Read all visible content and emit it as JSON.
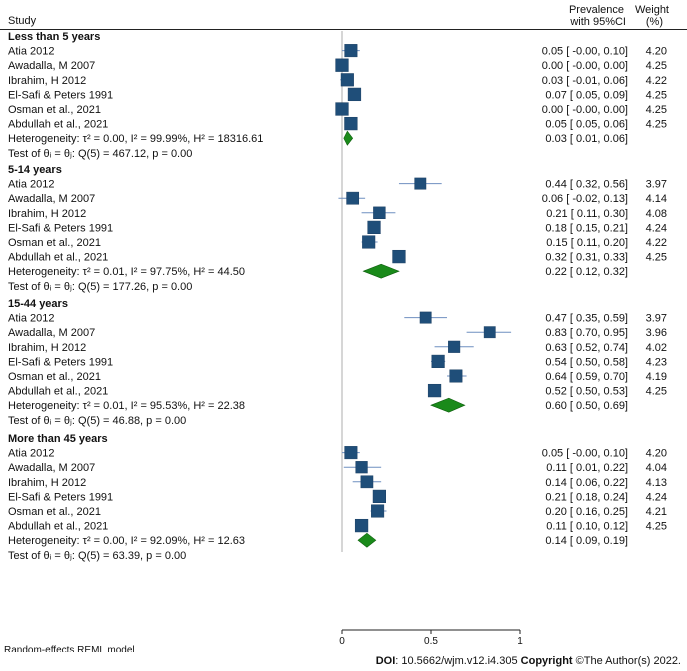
{
  "chart_data": {
    "type": "forest",
    "header": {
      "study": "Study",
      "prevalence_1": "Prevalence",
      "prevalence_2": "with 95%CI",
      "weight_1": "Weight",
      "weight_2": "(%)"
    },
    "x_range": [
      0,
      1
    ],
    "x_ticks": [
      0,
      0.5,
      1
    ],
    "x_tick_labels": [
      "0",
      "0.5",
      "1"
    ],
    "model_note": "Random-effects REML model",
    "groups": [
      {
        "title": "Less than 5 years",
        "studies": [
          {
            "name": "Atia 2012",
            "est": 0.05,
            "lo": -0.0,
            "hi": 0.1,
            "ci_text": "0.05 [ -0.00, 0.10]",
            "weight": "4.20"
          },
          {
            "name": "Awadalla, M 2007",
            "est": 0.0,
            "lo": -0.0,
            "hi": 0.0,
            "ci_text": "0.00 [ -0.00, 0.00]",
            "weight": "4.25"
          },
          {
            "name": "Ibrahim, H 2012",
            "est": 0.03,
            "lo": -0.01,
            "hi": 0.06,
            "ci_text": "0.03 [ -0.01, 0.06]",
            "weight": "4.22"
          },
          {
            "name": "El-Safi & Peters 1991",
            "est": 0.07,
            "lo": 0.05,
            "hi": 0.09,
            "ci_text": "0.07 [ 0.05, 0.09]",
            "weight": "4.25"
          },
          {
            "name": "Osman et al., 2021",
            "est": 0.0,
            "lo": -0.0,
            "hi": 0.0,
            "ci_text": "0.00 [ -0.00, 0.00]",
            "weight": "4.25"
          },
          {
            "name": "Abdullah  et al., 2021",
            "est": 0.05,
            "lo": 0.05,
            "hi": 0.06,
            "ci_text": "0.05 [ 0.05, 0.06]",
            "weight": "4.25"
          }
        ],
        "pooled": {
          "label": "Heterogeneity: τ² = 0.00, I² = 99.99%, H² = 18316.61",
          "est": 0.03,
          "lo": 0.01,
          "hi": 0.06,
          "ci_text": "0.03 [ 0.01, 0.06]"
        },
        "test": "Test of θᵢ = θⱼ: Q(5) = 467.12,  p = 0.00"
      },
      {
        "title": "5-14 years",
        "studies": [
          {
            "name": "Atia 2012",
            "est": 0.44,
            "lo": 0.32,
            "hi": 0.56,
            "ci_text": "0.44 [ 0.32, 0.56]",
            "weight": "3.97"
          },
          {
            "name": "Awadalla, M 2007",
            "est": 0.06,
            "lo": -0.02,
            "hi": 0.13,
            "ci_text": "0.06 [ -0.02, 0.13]",
            "weight": "4.14"
          },
          {
            "name": "Ibrahim, H 2012",
            "est": 0.21,
            "lo": 0.11,
            "hi": 0.3,
            "ci_text": "0.21 [ 0.11, 0.30]",
            "weight": "4.08"
          },
          {
            "name": "El-Safi & Peters 1991",
            "est": 0.18,
            "lo": 0.15,
            "hi": 0.21,
            "ci_text": "0.18 [ 0.15, 0.21]",
            "weight": "4.24"
          },
          {
            "name": "Osman et al., 2021",
            "est": 0.15,
            "lo": 0.11,
            "hi": 0.2,
            "ci_text": "0.15 [ 0.11, 0.20]",
            "weight": "4.22"
          },
          {
            "name": "Abdullah  et al., 2021",
            "est": 0.32,
            "lo": 0.31,
            "hi": 0.33,
            "ci_text": "0.32 [ 0.31, 0.33]",
            "weight": "4.25"
          }
        ],
        "pooled": {
          "label": "Heterogeneity: τ² = 0.01, I² = 97.75%, H² = 44.50",
          "est": 0.22,
          "lo": 0.12,
          "hi": 0.32,
          "ci_text": "0.22 [ 0.12, 0.32]"
        },
        "test": "Test of θᵢ = θⱼ: Q(5) = 177.26,  p = 0.00"
      },
      {
        "title": "15-44 years",
        "studies": [
          {
            "name": "Atia 2012",
            "est": 0.47,
            "lo": 0.35,
            "hi": 0.59,
            "ci_text": "0.47 [ 0.35, 0.59]",
            "weight": "3.97"
          },
          {
            "name": "Awadalla, M 2007",
            "est": 0.83,
            "lo": 0.7,
            "hi": 0.95,
            "ci_text": "0.83 [ 0.70, 0.95]",
            "weight": "3.96"
          },
          {
            "name": "Ibrahim, H 2012",
            "est": 0.63,
            "lo": 0.52,
            "hi": 0.74,
            "ci_text": "0.63 [ 0.52, 0.74]",
            "weight": "4.02"
          },
          {
            "name": "El-Safi & Peters 1991",
            "est": 0.54,
            "lo": 0.5,
            "hi": 0.58,
            "ci_text": "0.54 [ 0.50, 0.58]",
            "weight": "4.23"
          },
          {
            "name": "Osman et al., 2021",
            "est": 0.64,
            "lo": 0.59,
            "hi": 0.7,
            "ci_text": "0.64 [ 0.59, 0.70]",
            "weight": "4.19"
          },
          {
            "name": "Abdullah  et al., 2021",
            "est": 0.52,
            "lo": 0.5,
            "hi": 0.53,
            "ci_text": "0.52 [ 0.50, 0.53]",
            "weight": "4.25"
          }
        ],
        "pooled": {
          "label": "Heterogeneity: τ² = 0.01, I² = 95.53%, H² = 22.38",
          "est": 0.6,
          "lo": 0.5,
          "hi": 0.69,
          "ci_text": "0.60 [ 0.50, 0.69]"
        },
        "test": "Test of θᵢ = θⱼ: Q(5) = 46.88,  p = 0.00"
      },
      {
        "title": "More than 45 years",
        "studies": [
          {
            "name": "Atia 2012",
            "est": 0.05,
            "lo": -0.0,
            "hi": 0.1,
            "ci_text": "0.05 [ -0.00, 0.10]",
            "weight": "4.20"
          },
          {
            "name": "Awadalla, M 2007",
            "est": 0.11,
            "lo": 0.01,
            "hi": 0.22,
            "ci_text": "0.11 [ 0.01, 0.22]",
            "weight": "4.04"
          },
          {
            "name": "Ibrahim, H 2012",
            "est": 0.14,
            "lo": 0.06,
            "hi": 0.22,
            "ci_text": "0.14 [ 0.06, 0.22]",
            "weight": "4.13"
          },
          {
            "name": "El-Safi & Peters 1991",
            "est": 0.21,
            "lo": 0.18,
            "hi": 0.24,
            "ci_text": "0.21 [ 0.18, 0.24]",
            "weight": "4.24"
          },
          {
            "name": "Osman et al., 2021",
            "est": 0.2,
            "lo": 0.16,
            "hi": 0.25,
            "ci_text": "0.20 [ 0.16, 0.25]",
            "weight": "4.21"
          },
          {
            "name": "Abdullah  et al., 2021",
            "est": 0.11,
            "lo": 0.1,
            "hi": 0.12,
            "ci_text": "0.11 [ 0.10, 0.12]",
            "weight": "4.25"
          }
        ],
        "pooled": {
          "label": "Heterogeneity: τ² = 0.00, I² = 92.09%, H² = 12.63",
          "est": 0.14,
          "lo": 0.09,
          "hi": 0.19,
          "ci_text": "0.14 [ 0.09, 0.19]"
        },
        "test": "Test of θᵢ = θⱼ: Q(5) = 63.39,  p = 0.00"
      }
    ],
    "colors": {
      "square": "#1f4e79",
      "ci_line": "#6f8fc0",
      "diamond": "#1a8a1a",
      "diamond_edge": "#0f5f0f"
    }
  },
  "footer": {
    "doi_label": "DOI",
    "doi_text": ": 10.5662/wjm.v12.i4.305",
    "copyright_label": "Copyright",
    "copyright_text": " ©The Author(s) 2022."
  }
}
